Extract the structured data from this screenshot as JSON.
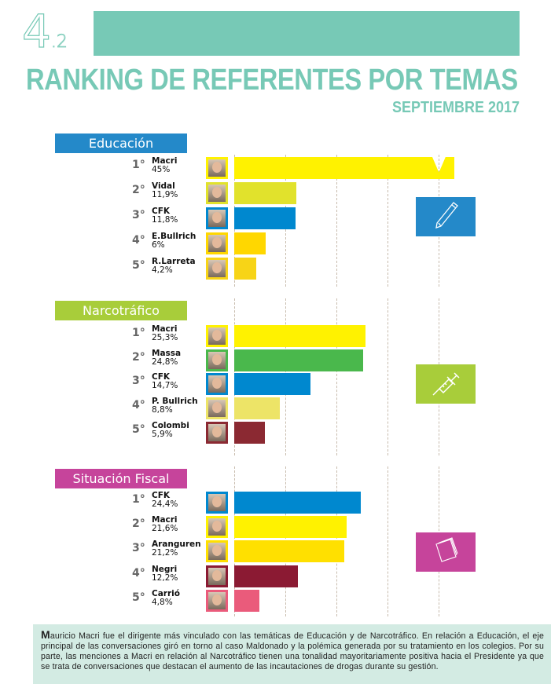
{
  "header": {
    "chapter_number": "4",
    "chapter_sub": ".2",
    "title": "RANKING DE REFERENTES POR TEMAS",
    "subtitle": "SEPTIEMBRE 2017"
  },
  "chart_data": [
    {
      "type": "bar",
      "title": "Educación",
      "color": "#2489c9",
      "icon": "pencil-icon",
      "unit": "%",
      "rows": [
        {
          "rank": "1°",
          "name": "Macri",
          "label": "45%",
          "value": 45,
          "color": "#fff200",
          "truncated": true
        },
        {
          "rank": "2°",
          "name": "Vidal",
          "label": "11,9%",
          "value": 11.9,
          "color": "#e1e22c"
        },
        {
          "rank": "3°",
          "name": "CFK",
          "label": "11,8%",
          "value": 11.8,
          "color": "#0088cf"
        },
        {
          "rank": "4°",
          "name": "E.Bullrich",
          "label": "6%",
          "value": 6,
          "color": "#ffd700"
        },
        {
          "rank": "5°",
          "name": "R.Larreta",
          "label": "4,2%",
          "value": 4.2,
          "color": "#f7d417"
        }
      ]
    },
    {
      "type": "bar",
      "title": "Narcotráfico",
      "color": "#a8cd3a",
      "icon": "syringe-icon",
      "unit": "%",
      "rows": [
        {
          "rank": "1°",
          "name": "Macri",
          "label": "25,3%",
          "value": 25.3,
          "color": "#fff200"
        },
        {
          "rank": "2°",
          "name": "Massa",
          "label": "24,8%",
          "value": 24.8,
          "color": "#4ab84c"
        },
        {
          "rank": "3°",
          "name": "CFK",
          "label": "14,7%",
          "value": 14.7,
          "color": "#0088cf"
        },
        {
          "rank": "4°",
          "name": "P. Bullrich",
          "label": "8,8%",
          "value": 8.8,
          "color": "#ede467"
        },
        {
          "rank": "5°",
          "name": "Colombi",
          "label": "5,9%",
          "value": 5.9,
          "color": "#8b2932"
        }
      ]
    },
    {
      "type": "bar",
      "title": "Situación Fiscal",
      "color": "#c6449b",
      "icon": "documents-icon",
      "unit": "%",
      "rows": [
        {
          "rank": "1°",
          "name": "CFK",
          "label": "24,4%",
          "value": 24.4,
          "color": "#0088cf"
        },
        {
          "rank": "2°",
          "name": "Macri",
          "label": "21,6%",
          "value": 21.6,
          "color": "#fff200"
        },
        {
          "rank": "3°",
          "name": "Aranguren",
          "label": "21,2%",
          "value": 21.2,
          "color": "#ffe000"
        },
        {
          "rank": "4°",
          "name": "Negri",
          "label": "12,2%",
          "value": 12.2,
          "color": "#8b1a33"
        },
        {
          "rank": "5°",
          "name": "Carrió",
          "label": "4,8%",
          "value": 4.8,
          "color": "#ea5b7b"
        }
      ]
    }
  ],
  "footer": {
    "initial": "M",
    "text": "auricio Macri fue el dirigente más vinculado con las temáticas de Educación y de Narcotráfico.  En relación a Educación, el eje principal de las conversaciones giró en torno al caso Maldonado y la polémica generada por su tratamiento en los colegios. Por su parte, las menciones a Macri en relación al Narcotráfico tienen una tonalidad mayoritariamente positiva hacia el Presidente ya que se trata de conversaciones que destacan el aumento de las incautaciones de drogas durante su gestión."
  }
}
